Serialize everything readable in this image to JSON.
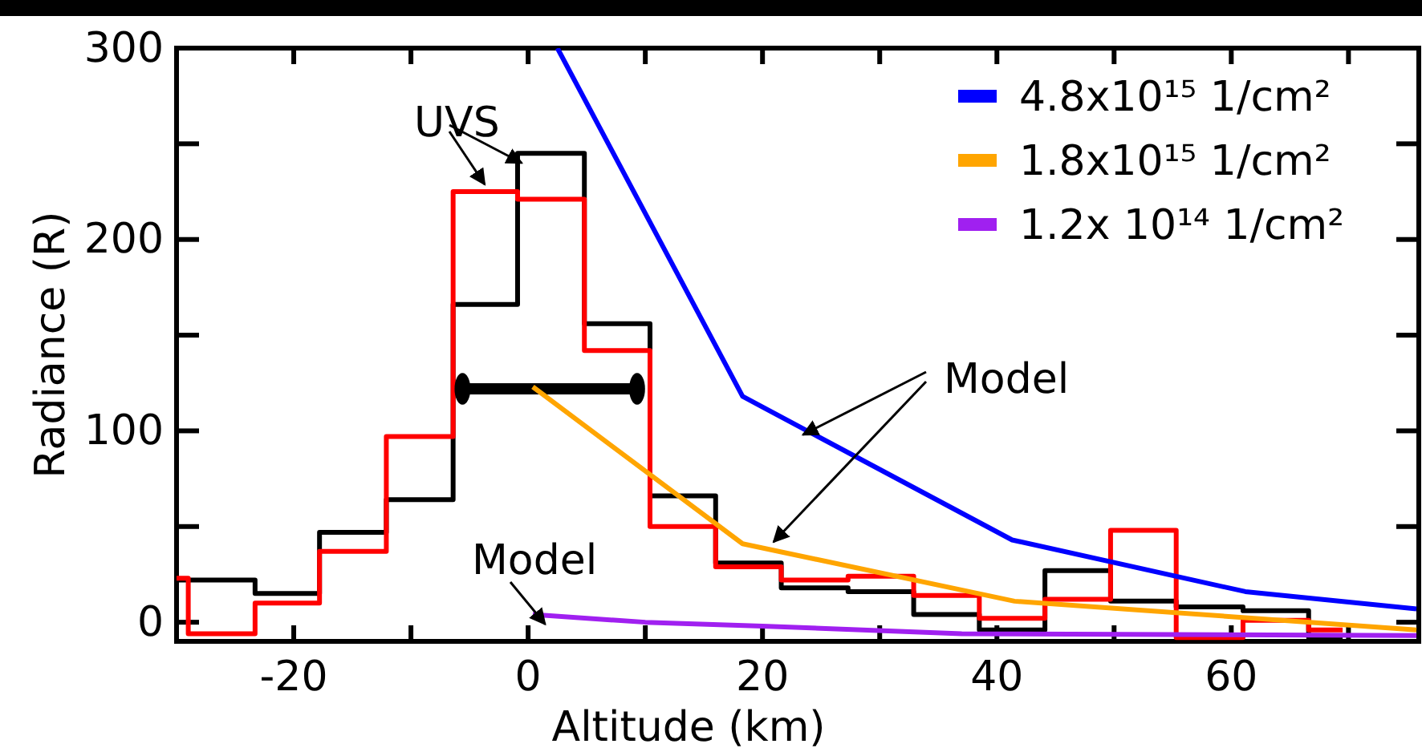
{
  "chart_data": {
    "type": "step",
    "xlabel": "Altitude (km)",
    "ylabel": "Radiance (R)",
    "xlim": [
      -30,
      76
    ],
    "ylim": [
      -10,
      300
    ],
    "xticks": [
      {
        "value": -30,
        "label": null
      },
      -20,
      {
        "value": -10,
        "label": null
      },
      0,
      {
        "value": 10,
        "label": null
      },
      20,
      {
        "value": 30,
        "label": null
      },
      40,
      {
        "value": 50,
        "label": null
      },
      60,
      {
        "value": 70,
        "label": null
      }
    ],
    "yticks": [
      0,
      {
        "value": 50,
        "label": null
      },
      100,
      {
        "value": 150,
        "label": null
      },
      200,
      {
        "value": 250,
        "label": null
      },
      300
    ],
    "marker": "none",
    "legend": "top right",
    "grid": false,
    "annotations": [
      {
        "text": "UVS",
        "x": 0,
        "y": 245
      },
      {
        "text": "Model",
        "x": 24,
        "y": 103
      },
      {
        "text": "Model",
        "x": 2,
        "y": 4
      }
    ],
    "series": [
      {
        "color": "#000000",
        "x": [
          -30,
          -23.3,
          -17.8,
          -12.1,
          -6.4,
          -0.9,
          4.8,
          10.4,
          16,
          21.6,
          27.3,
          32.9,
          38.5,
          44.1,
          49.7,
          55.3,
          61,
          66.6,
          69.5
        ],
        "values": [
          22,
          15,
          47,
          64,
          166,
          245,
          156,
          66,
          31,
          18,
          16,
          4,
          -4,
          27,
          11,
          8,
          6,
          -8,
          -8
        ]
      },
      {
        "color": "#ff0000",
        "x": [
          -30,
          -29,
          -23.3,
          -17.8,
          -12.1,
          -6.4,
          -0.9,
          4.8,
          10.4,
          16,
          21.6,
          27.3,
          32.9,
          38.5,
          44.1,
          49.7,
          55.3,
          61,
          66.6,
          69.5
        ],
        "values": [
          23,
          -6,
          10,
          37,
          97,
          225,
          221,
          142,
          50,
          29,
          22,
          24,
          14,
          2,
          12,
          48,
          -8,
          1,
          -4,
          -4
        ]
      },
      {
        "type": "line",
        "marker": "circle",
        "color": "#000000",
        "x": [
          -5.6,
          9.3
        ],
        "values": [
          122,
          122
        ]
      },
      {
        "type": "line",
        "name": "4.8x10¹⁵ 1/cm²",
        "color": "#0000ff",
        "x": [
          2.5,
          18.3,
          41.3,
          61.2,
          75.8
        ],
        "values": [
          300,
          118,
          43,
          16,
          7
        ]
      },
      {
        "type": "line",
        "name": "1.8x10¹⁵ 1/cm²",
        "color": "#ffa500",
        "x": [
          0.4,
          18.3,
          41.5,
          75.8
        ],
        "values": [
          123,
          41,
          11,
          -4
        ]
      },
      {
        "type": "line",
        "name": "1.2x 10¹⁴ 1/cm²",
        "color": "#a020f0",
        "x": [
          0.4,
          10,
          20,
          37,
          75.8
        ],
        "values": [
          4,
          0,
          -2,
          -6,
          -7
        ]
      }
    ]
  }
}
